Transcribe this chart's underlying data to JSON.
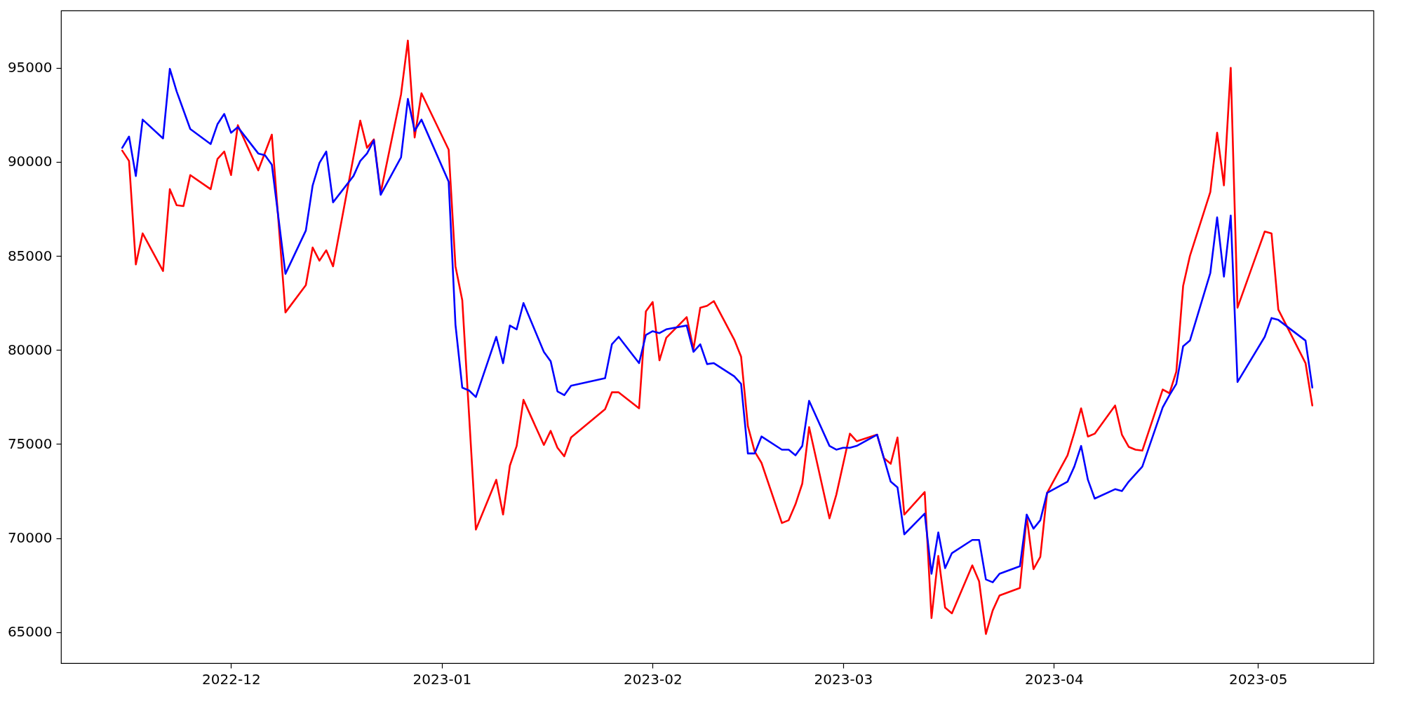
{
  "chart_data": {
    "type": "line",
    "xlim": [
      "2022-11-06",
      "2023-05-18"
    ],
    "xticks": [
      "2022-12",
      "2023-01",
      "2023-02",
      "2023-03",
      "2023-04",
      "2023-05"
    ],
    "ylim": [
      63350,
      98050
    ],
    "yticks": [
      65000,
      70000,
      75000,
      80000,
      85000,
      90000,
      95000
    ],
    "grid": false,
    "line_style": "solid",
    "series": [
      {
        "color": "#ff0000",
        "x": [
          "2022-11-15",
          "2022-11-16",
          "2022-11-17",
          "2022-11-18",
          "2022-11-21",
          "2022-11-22",
          "2022-11-23",
          "2022-11-24",
          "2022-11-25",
          "2022-11-28",
          "2022-11-29",
          "2022-11-30",
          "2022-12-01",
          "2022-12-02",
          "2022-12-05",
          "2022-12-07",
          "2022-12-09",
          "2022-12-12",
          "2022-12-13",
          "2022-12-14",
          "2022-12-15",
          "2022-12-16",
          "2022-12-20",
          "2022-12-21",
          "2022-12-22",
          "2022-12-23",
          "2022-12-26",
          "2022-12-27",
          "2022-12-28",
          "2022-12-29",
          "2023-01-02",
          "2023-01-03",
          "2023-01-04",
          "2023-01-06",
          "2023-01-09",
          "2023-01-10",
          "2023-01-11",
          "2023-01-12",
          "2023-01-13",
          "2023-01-16",
          "2023-01-17",
          "2023-01-18",
          "2023-01-19",
          "2023-01-20",
          "2023-01-25",
          "2023-01-26",
          "2023-01-27",
          "2023-01-30",
          "2023-01-31",
          "2023-02-01",
          "2023-02-02",
          "2023-02-03",
          "2023-02-06",
          "2023-02-07",
          "2023-02-08",
          "2023-02-09",
          "2023-02-10",
          "2023-02-13",
          "2023-02-14",
          "2023-02-15",
          "2023-02-16",
          "2023-02-17",
          "2023-02-20",
          "2023-02-21",
          "2023-02-22",
          "2023-02-23",
          "2023-02-24",
          "2023-02-27",
          "2023-02-28",
          "2023-03-02",
          "2023-03-03",
          "2023-03-06",
          "2023-03-07",
          "2023-03-08",
          "2023-03-09",
          "2023-03-10",
          "2023-03-13",
          "2023-03-14",
          "2023-03-15",
          "2023-03-16",
          "2023-03-17",
          "2023-03-20",
          "2023-03-21",
          "2023-03-22",
          "2023-03-23",
          "2023-03-24",
          "2023-03-27",
          "2023-03-28",
          "2023-03-29",
          "2023-03-30",
          "2023-03-31",
          "2023-04-03",
          "2023-04-04",
          "2023-04-05",
          "2023-04-06",
          "2023-04-07",
          "2023-04-10",
          "2023-04-11",
          "2023-04-12",
          "2023-04-13",
          "2023-04-14",
          "2023-04-17",
          "2023-04-18",
          "2023-04-19",
          "2023-04-20",
          "2023-04-21",
          "2023-04-24",
          "2023-04-25",
          "2023-04-26",
          "2023-04-27",
          "2023-04-28",
          "2023-05-02",
          "2023-05-03",
          "2023-05-04",
          "2023-05-08",
          "2023-05-09"
        ],
        "values": [
          90600,
          90050,
          84550,
          86200,
          84200,
          88550,
          87700,
          87650,
          89300,
          88550,
          90150,
          90550,
          89300,
          91950,
          89550,
          91450,
          82000,
          83450,
          85450,
          84750,
          85300,
          84450,
          92200,
          90750,
          91200,
          88350,
          93600,
          96450,
          91300,
          93650,
          90650,
          84450,
          82650,
          70450,
          73100,
          71250,
          73850,
          74900,
          77350,
          74950,
          75700,
          74800,
          74350,
          75350,
          76850,
          77750,
          77750,
          76900,
          82050,
          82550,
          79450,
          80650,
          81750,
          80050,
          82250,
          82350,
          82600,
          80550,
          79650,
          75950,
          74600,
          74000,
          70800,
          70950,
          71800,
          72900,
          75900,
          71050,
          72300,
          75550,
          75150,
          75500,
          74250,
          73950,
          75350,
          71250,
          72450,
          65750,
          69050,
          66300,
          66000,
          68550,
          67700,
          64900,
          66150,
          66950,
          67350,
          71150,
          68350,
          69000,
          72400,
          74400,
          75600,
          76900,
          75400,
          75550,
          77050,
          75500,
          74850,
          74700,
          74650,
          77900,
          77700,
          78850,
          83400,
          85000,
          88400,
          91550,
          88750,
          95000,
          82250,
          86300,
          86200,
          82150,
          79300,
          77050
        ]
      },
      {
        "color": "#0000ff",
        "x": [
          "2022-11-15",
          "2022-11-16",
          "2022-11-17",
          "2022-11-18",
          "2022-11-21",
          "2022-11-22",
          "2022-11-23",
          "2022-11-25",
          "2022-11-28",
          "2022-11-29",
          "2022-11-30",
          "2022-12-01",
          "2022-12-02",
          "2022-12-05",
          "2022-12-06",
          "2022-12-07",
          "2022-12-09",
          "2022-12-12",
          "2022-12-13",
          "2022-12-14",
          "2022-12-15",
          "2022-12-16",
          "2022-12-19",
          "2022-12-20",
          "2022-12-21",
          "2022-12-22",
          "2022-12-23",
          "2022-12-26",
          "2022-12-27",
          "2022-12-28",
          "2022-12-29",
          "2023-01-02",
          "2023-01-03",
          "2023-01-04",
          "2023-01-05",
          "2023-01-06",
          "2023-01-09",
          "2023-01-10",
          "2023-01-11",
          "2023-01-12",
          "2023-01-13",
          "2023-01-16",
          "2023-01-17",
          "2023-01-18",
          "2023-01-19",
          "2023-01-20",
          "2023-01-25",
          "2023-01-26",
          "2023-01-27",
          "2023-01-30",
          "2023-01-31",
          "2023-02-01",
          "2023-02-02",
          "2023-02-03",
          "2023-02-06",
          "2023-02-07",
          "2023-02-08",
          "2023-02-09",
          "2023-02-10",
          "2023-02-13",
          "2023-02-14",
          "2023-02-15",
          "2023-02-16",
          "2023-02-17",
          "2023-02-20",
          "2023-02-21",
          "2023-02-22",
          "2023-02-23",
          "2023-02-24",
          "2023-02-27",
          "2023-02-28",
          "2023-03-01",
          "2023-03-02",
          "2023-03-03",
          "2023-03-06",
          "2023-03-07",
          "2023-03-08",
          "2023-03-09",
          "2023-03-10",
          "2023-03-13",
          "2023-03-14",
          "2023-03-15",
          "2023-03-16",
          "2023-03-17",
          "2023-03-20",
          "2023-03-21",
          "2023-03-22",
          "2023-03-23",
          "2023-03-24",
          "2023-03-27",
          "2023-03-28",
          "2023-03-29",
          "2023-03-30",
          "2023-03-31",
          "2023-04-03",
          "2023-04-04",
          "2023-04-05",
          "2023-04-06",
          "2023-04-07",
          "2023-04-10",
          "2023-04-11",
          "2023-04-12",
          "2023-04-13",
          "2023-04-14",
          "2023-04-17",
          "2023-04-18",
          "2023-04-19",
          "2023-04-20",
          "2023-04-21",
          "2023-04-24",
          "2023-04-25",
          "2023-04-26",
          "2023-04-27",
          "2023-04-28",
          "2023-05-02",
          "2023-05-03",
          "2023-05-04",
          "2023-05-08",
          "2023-05-09"
        ],
        "values": [
          90750,
          91350,
          89250,
          92250,
          91250,
          94950,
          93750,
          91750,
          90950,
          92000,
          92550,
          91550,
          91850,
          90450,
          90350,
          89850,
          84050,
          86350,
          88750,
          89950,
          90550,
          87850,
          89250,
          90050,
          90450,
          91150,
          88250,
          90250,
          93350,
          91650,
          92250,
          88950,
          81350,
          78000,
          77850,
          77500,
          80700,
          79300,
          81300,
          81100,
          82500,
          79900,
          79400,
          77800,
          77600,
          78100,
          78500,
          80300,
          80700,
          79300,
          80800,
          81000,
          80900,
          81100,
          81300,
          79900,
          80300,
          79250,
          79300,
          78600,
          78200,
          74500,
          74500,
          75400,
          74700,
          74700,
          74400,
          74900,
          77300,
          74900,
          74700,
          74800,
          74800,
          74900,
          75500,
          74250,
          73000,
          72700,
          70200,
          71300,
          68100,
          70300,
          68400,
          69200,
          69900,
          69900,
          67800,
          67650,
          68100,
          68500,
          71250,
          70500,
          70950,
          72400,
          73000,
          73800,
          74900,
          73100,
          72100,
          72600,
          72500,
          73000,
          73400,
          73800,
          76950,
          77600,
          78200,
          80200,
          80500,
          84100,
          87050,
          83900,
          87150,
          78300,
          80700,
          81700,
          81600,
          80500,
          78000
        ]
      }
    ]
  }
}
